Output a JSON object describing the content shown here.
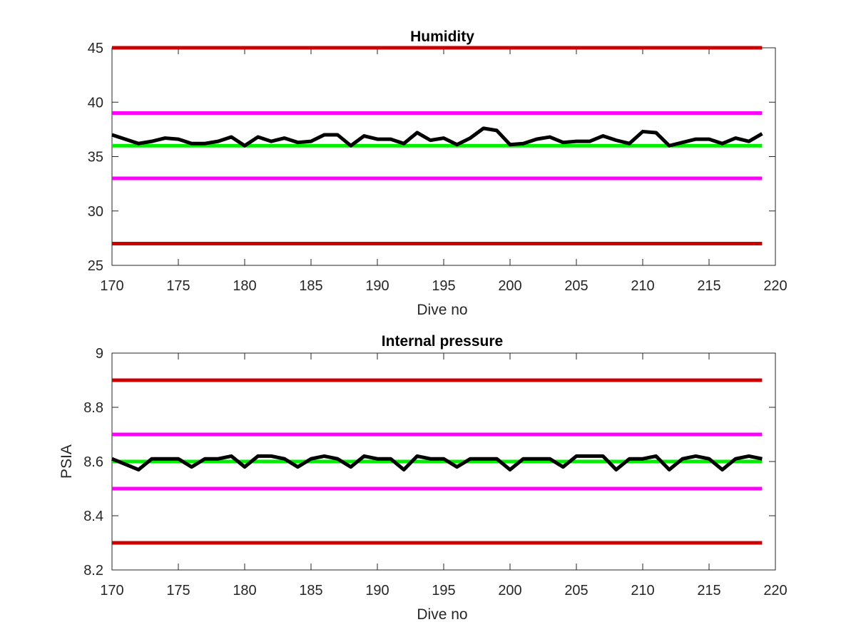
{
  "chart_data": [
    {
      "type": "line",
      "title": "Humidity",
      "xlabel": "Dive no",
      "ylabel": "",
      "xlim": [
        170,
        220
      ],
      "ylim": [
        25,
        45
      ],
      "xticks": [
        170,
        175,
        180,
        185,
        190,
        195,
        200,
        205,
        210,
        215,
        220
      ],
      "yticks": [
        25,
        30,
        35,
        40,
        45
      ],
      "xtick_labels": [
        "170",
        "175",
        "180",
        "185",
        "190",
        "195",
        "200",
        "205",
        "210",
        "215",
        "220"
      ],
      "ytick_labels": [
        "25",
        "30",
        "35",
        "40",
        "45"
      ],
      "grid": false,
      "x": [
        170,
        171,
        172,
        173,
        174,
        175,
        176,
        177,
        178,
        179,
        180,
        181,
        182,
        183,
        184,
        185,
        186,
        187,
        188,
        189,
        190,
        191,
        192,
        193,
        194,
        195,
        196,
        197,
        198,
        199,
        200,
        201,
        202,
        203,
        204,
        205,
        206,
        207,
        208,
        209,
        210,
        211,
        212,
        213,
        214,
        215,
        216,
        217,
        218,
        219
      ],
      "series": [
        {
          "color": "#000000",
          "values": [
            37.0,
            36.6,
            36.2,
            36.4,
            36.7,
            36.6,
            36.2,
            36.2,
            36.4,
            36.8,
            36.0,
            36.8,
            36.4,
            36.7,
            36.3,
            36.4,
            37.0,
            37.0,
            36.0,
            36.9,
            36.6,
            36.6,
            36.2,
            37.2,
            36.5,
            36.7,
            36.1,
            36.7,
            37.6,
            37.4,
            36.1,
            36.2,
            36.6,
            36.8,
            36.3,
            36.4,
            36.4,
            36.9,
            36.5,
            36.2,
            37.3,
            37.2,
            36.0,
            36.3,
            36.6,
            36.6,
            36.2,
            36.7,
            36.4,
            37.1
          ]
        }
      ],
      "reference_lines": [
        {
          "y": 45,
          "x_range": [
            170,
            219
          ],
          "color": "#cc0000"
        },
        {
          "y": 39,
          "x_range": [
            170,
            219
          ],
          "color": "#ff00ff"
        },
        {
          "y": 36,
          "x_range": [
            170,
            219
          ],
          "color": "#00ee00"
        },
        {
          "y": 33,
          "x_range": [
            170,
            219
          ],
          "color": "#ff00ff"
        },
        {
          "y": 27,
          "x_range": [
            170,
            219
          ],
          "color": "#cc0000"
        }
      ]
    },
    {
      "type": "line",
      "title": "Internal pressure",
      "xlabel": "Dive no",
      "ylabel": "PSIA",
      "xlim": [
        170,
        220
      ],
      "ylim": [
        8.2,
        9.0
      ],
      "xticks": [
        170,
        175,
        180,
        185,
        190,
        195,
        200,
        205,
        210,
        215,
        220
      ],
      "yticks": [
        8.2,
        8.4,
        8.6,
        8.8,
        9.0
      ],
      "xtick_labels": [
        "170",
        "175",
        "180",
        "185",
        "190",
        "195",
        "200",
        "205",
        "210",
        "215",
        "220"
      ],
      "ytick_labels": [
        "8.2",
        "8.4",
        "8.6",
        "8.8",
        "9"
      ],
      "grid": false,
      "x": [
        170,
        171,
        172,
        173,
        174,
        175,
        176,
        177,
        178,
        179,
        180,
        181,
        182,
        183,
        184,
        185,
        186,
        187,
        188,
        189,
        190,
        191,
        192,
        193,
        194,
        195,
        196,
        197,
        198,
        199,
        200,
        201,
        202,
        203,
        204,
        205,
        206,
        207,
        208,
        209,
        210,
        211,
        212,
        213,
        214,
        215,
        216,
        217,
        218,
        219
      ],
      "series": [
        {
          "color": "#000000",
          "values": [
            8.61,
            8.59,
            8.57,
            8.61,
            8.61,
            8.61,
            8.58,
            8.61,
            8.61,
            8.62,
            8.58,
            8.62,
            8.62,
            8.61,
            8.58,
            8.61,
            8.62,
            8.61,
            8.58,
            8.62,
            8.61,
            8.61,
            8.57,
            8.62,
            8.61,
            8.61,
            8.58,
            8.61,
            8.61,
            8.61,
            8.57,
            8.61,
            8.61,
            8.61,
            8.58,
            8.62,
            8.62,
            8.62,
            8.57,
            8.61,
            8.61,
            8.62,
            8.57,
            8.61,
            8.62,
            8.61,
            8.57,
            8.61,
            8.62,
            8.61
          ]
        }
      ],
      "reference_lines": [
        {
          "y": 8.9,
          "x_range": [
            170,
            219
          ],
          "color": "#cc0000"
        },
        {
          "y": 8.7,
          "x_range": [
            170,
            219
          ],
          "color": "#ff00ff"
        },
        {
          "y": 8.6,
          "x_range": [
            170,
            219
          ],
          "color": "#00ee00"
        },
        {
          "y": 8.5,
          "x_range": [
            170,
            219
          ],
          "color": "#ff00ff"
        },
        {
          "y": 8.3,
          "x_range": [
            170,
            219
          ],
          "color": "#cc0000"
        }
      ]
    }
  ]
}
